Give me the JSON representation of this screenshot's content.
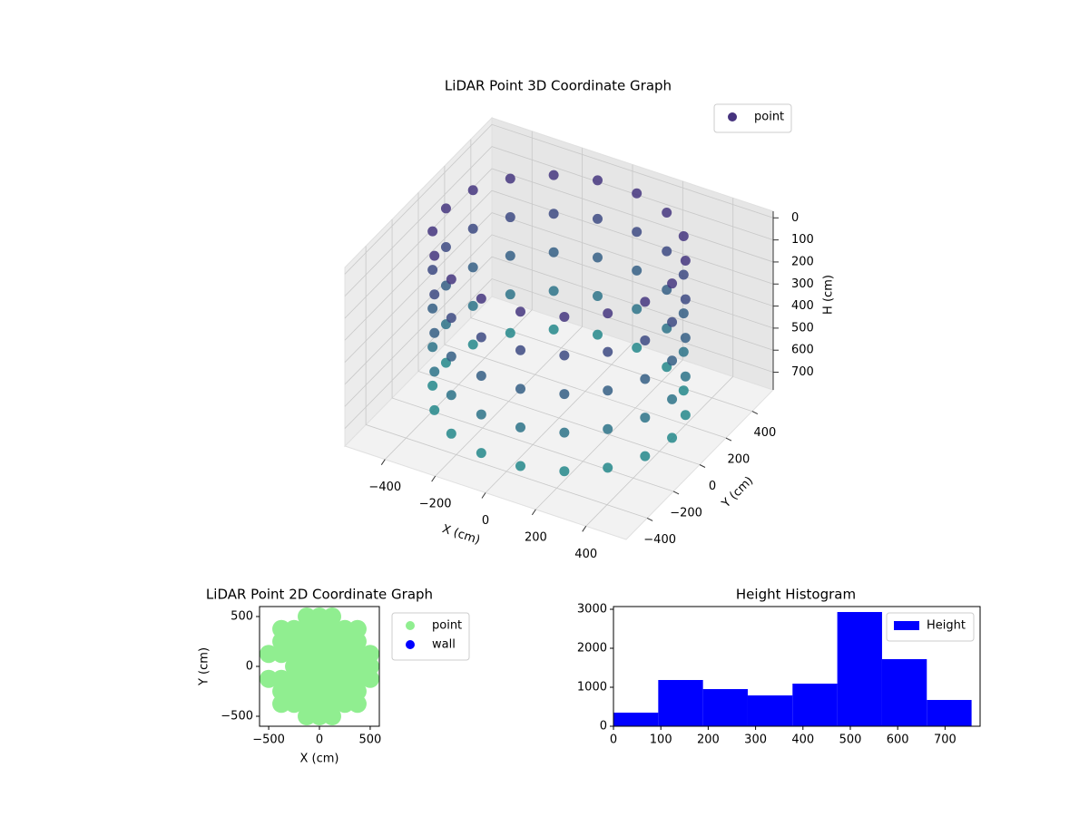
{
  "chart_data": [
    {
      "type": "scatter3d",
      "title": "LiDAR Point 3D Coordinate Graph",
      "xlabel": "X (cm)",
      "ylabel": "Y (cm)",
      "zlabel": "H (cm)",
      "series": [
        {
          "name": "point",
          "color": "#46337e",
          "x": [
            450,
            423,
            345,
            225,
            78,
            -78,
            -225,
            -345,
            -423,
            -450,
            -423,
            -345,
            -225,
            -78,
            78,
            225,
            345,
            423,
            450,
            423,
            345,
            225,
            78,
            -78,
            -225,
            -345,
            -423,
            -450,
            -423,
            -345,
            -225,
            -78,
            78,
            225,
            345,
            423,
            450,
            423,
            345,
            225,
            78,
            -78,
            -225,
            -345,
            -423,
            -450,
            -423,
            -345,
            -225,
            -78,
            78,
            225,
            345,
            423,
            450,
            423,
            345,
            225,
            78,
            -78,
            -225,
            -345,
            -423,
            -450,
            -423,
            -345,
            -225,
            -78,
            78,
            225,
            345,
            423,
            450,
            423,
            345,
            225,
            78,
            -78,
            -225,
            -345,
            -423,
            -450,
            -423,
            -345,
            -225,
            -78,
            78,
            225,
            345,
            423
          ],
          "y": [
            0,
            154,
            289,
            390,
            443,
            443,
            390,
            289,
            154,
            0,
            -154,
            -289,
            -390,
            -443,
            -443,
            -390,
            -289,
            -154,
            0,
            154,
            289,
            390,
            443,
            443,
            390,
            289,
            154,
            0,
            -154,
            -289,
            -390,
            -443,
            -443,
            -390,
            -289,
            -154,
            0,
            154,
            289,
            390,
            443,
            443,
            390,
            289,
            154,
            0,
            -154,
            -289,
            -390,
            -443,
            -443,
            -390,
            -289,
            -154,
            0,
            154,
            289,
            390,
            443,
            443,
            390,
            289,
            154,
            0,
            -154,
            -289,
            -390,
            -443,
            -443,
            -390,
            -289,
            -154,
            0,
            154,
            289,
            390,
            443,
            443,
            390,
            289,
            154,
            0,
            -154,
            -289,
            -390,
            -443,
            -443,
            -390,
            -289,
            -154
          ],
          "z": [
            0,
            0,
            0,
            0,
            0,
            0,
            0,
            0,
            0,
            0,
            0,
            0,
            0,
            0,
            0,
            0,
            0,
            0,
            175,
            175,
            175,
            175,
            175,
            175,
            175,
            175,
            175,
            175,
            175,
            175,
            175,
            175,
            175,
            175,
            175,
            175,
            350,
            350,
            350,
            350,
            350,
            350,
            350,
            350,
            350,
            350,
            350,
            350,
            350,
            350,
            350,
            350,
            350,
            350,
            525,
            525,
            525,
            525,
            525,
            525,
            525,
            525,
            525,
            525,
            525,
            525,
            525,
            525,
            525,
            525,
            525,
            525,
            700,
            700,
            700,
            700,
            700,
            700,
            700,
            700,
            700,
            700,
            700,
            700,
            700,
            700,
            700,
            700,
            700,
            700
          ]
        }
      ],
      "xlim": [
        -560,
        560
      ],
      "ylim": [
        -560,
        560
      ],
      "zlim": [
        -30,
        780
      ],
      "z_inverted": true,
      "xticks": [
        {
          "value": -400,
          "label": "−400"
        },
        {
          "value": -200,
          "label": "−200"
        },
        0,
        200,
        400
      ],
      "yticks": [
        {
          "value": -400,
          "label": "−400"
        },
        {
          "value": -200,
          "label": "−200"
        },
        0,
        200,
        400
      ],
      "zticks": [
        0,
        100,
        200,
        300,
        400,
        500,
        600,
        700
      ],
      "grid": true,
      "legend": "upper right"
    },
    {
      "type": "scatter",
      "title": "LiDAR Point 2D Coordinate Graph",
      "xlabel": "X (cm)",
      "ylabel": "Y (cm)",
      "series": [
        {
          "name": "point",
          "color": "#90ee90",
          "x": [
            -125,
            0,
            125,
            -375,
            -250,
            -125,
            0,
            125,
            250,
            375,
            -375,
            -250,
            -125,
            0,
            125,
            250,
            375,
            -500,
            -375,
            -250,
            -125,
            0,
            125,
            250,
            375,
            500,
            -250,
            -125,
            0,
            125,
            250,
            375,
            500,
            -500,
            -375,
            -250,
            -125,
            0,
            125,
            250,
            375,
            500,
            -375,
            -250,
            -125,
            0,
            125,
            250,
            375,
            -375,
            -250,
            -125,
            0,
            125,
            250,
            375,
            -125,
            0,
            125
          ],
          "y": [
            500,
            500,
            500,
            375,
            375,
            375,
            375,
            375,
            375,
            375,
            250,
            250,
            250,
            250,
            250,
            250,
            250,
            125,
            125,
            125,
            125,
            125,
            125,
            125,
            125,
            125,
            0,
            0,
            0,
            0,
            0,
            0,
            0,
            -125,
            -125,
            -125,
            -125,
            -125,
            -125,
            -125,
            -125,
            -125,
            -250,
            -250,
            -250,
            -250,
            -250,
            -250,
            -250,
            -375,
            -375,
            -375,
            -375,
            -375,
            -375,
            -375,
            -500,
            -500,
            -500
          ]
        },
        {
          "name": "wall",
          "color": "#0000ff",
          "x": [],
          "y": []
        }
      ],
      "xlim": [
        -590,
        590
      ],
      "ylim": [
        -600,
        600
      ],
      "xticks": [
        {
          "value": -500,
          "label": "−500"
        },
        0,
        500
      ],
      "yticks": [
        {
          "value": -500,
          "label": "−500"
        },
        0,
        500
      ],
      "legend": "outside right"
    },
    {
      "type": "histogram",
      "title": "Height Histogram",
      "bins": [
        0,
        94.5,
        189,
        283.5,
        378,
        472.5,
        567,
        661.5,
        756
      ],
      "series": [
        {
          "name": "Height",
          "color": "#0000ff",
          "values": [
            349,
            1186,
            953,
            791,
            1093,
            2930,
            1721,
            674
          ]
        }
      ],
      "xlim": [
        0,
        774
      ],
      "ylim": [
        0,
        3070
      ],
      "xticks": [
        0,
        100,
        200,
        300,
        400,
        500,
        600,
        700
      ],
      "yticks": [
        0,
        1000,
        2000,
        3000
      ],
      "legend": "upper right"
    }
  ]
}
